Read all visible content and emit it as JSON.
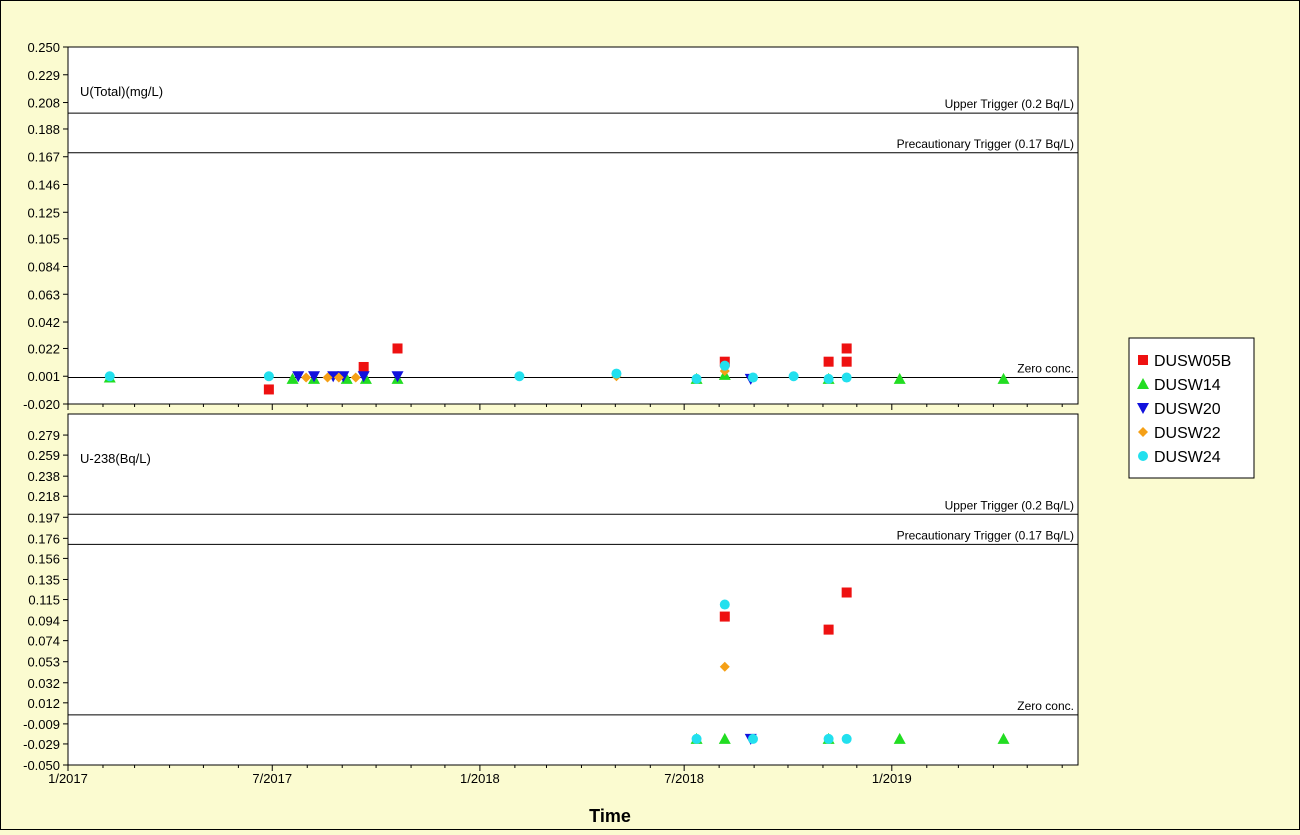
{
  "xlabel": "Time",
  "colors": {
    "background": "#fbfbd0",
    "plot": "#ffffff",
    "DUSW05B": "#ee1111",
    "DUSW14": "#22dd22",
    "DUSW20": "#1111dd",
    "DUSW22": "#f5a016",
    "DUSW24": "#22e0ee"
  },
  "legend": {
    "placement": "right",
    "items": [
      {
        "name": "DUSW05B",
        "marker": "square"
      },
      {
        "name": "DUSW14",
        "marker": "triangle-up"
      },
      {
        "name": "DUSW20",
        "marker": "triangle-down"
      },
      {
        "name": "DUSW22",
        "marker": "diamond"
      },
      {
        "name": "DUSW24",
        "marker": "circle"
      }
    ]
  },
  "chart_data": [
    {
      "type": "scatter",
      "ylabel": "U(Total)(mg/L)",
      "ylim": [
        -0.02,
        0.25
      ],
      "yticks": [
        "0.250",
        "0.229",
        "0.208",
        "0.188",
        "0.167",
        "0.146",
        "0.125",
        "0.105",
        "0.084",
        "0.063",
        "0.042",
        "0.022",
        "0.001",
        "-0.020"
      ],
      "xticks": [
        "1/2017",
        "7/2017",
        "1/2018",
        "7/2018",
        "1/2019"
      ],
      "xlim": [
        "2017-01-01",
        "2019-06-15"
      ],
      "reference_lines": [
        {
          "label": "Upper Trigger (0.2 Bq/L)",
          "y": 0.2
        },
        {
          "label": "Precautionary Trigger (0.17 Bq/L)",
          "y": 0.17
        },
        {
          "label": "Zero conc.",
          "y": 0.0
        }
      ],
      "series": [
        {
          "name": "DUSW05B",
          "x": [
            "2017-06-28",
            "2017-09-20",
            "2017-10-20",
            "2018-08-06",
            "2018-11-06",
            "2018-11-22",
            "2018-11-22"
          ],
          "y": [
            -0.009,
            0.008,
            0.022,
            0.012,
            0.012,
            0.022,
            0.012
          ]
        },
        {
          "name": "DUSW14",
          "x": [
            "2017-02-07",
            "2017-07-19",
            "2017-08-07",
            "2017-09-05",
            "2017-09-22",
            "2017-10-20",
            "2018-07-12",
            "2018-08-06",
            "2018-11-06",
            "2019-01-08",
            "2019-04-10"
          ],
          "y": [
            0.0,
            -0.001,
            -0.001,
            -0.001,
            -0.001,
            -0.001,
            -0.001,
            0.002,
            -0.001,
            -0.001,
            -0.001
          ]
        },
        {
          "name": "DUSW20",
          "x": [
            "2017-07-24",
            "2017-08-07",
            "2017-08-24",
            "2017-09-02",
            "2017-09-20",
            "2017-10-20",
            "2018-08-29"
          ],
          "y": [
            0.001,
            0.001,
            0.001,
            0.001,
            0.001,
            0.001,
            -0.001
          ]
        },
        {
          "name": "DUSW22",
          "x": [
            "2017-07-31",
            "2017-08-19",
            "2017-08-29",
            "2017-09-13",
            "2018-05-02",
            "2018-08-06"
          ],
          "y": [
            0.0,
            0.0,
            0.0,
            0.0,
            0.001,
            0.005
          ]
        },
        {
          "name": "DUSW24",
          "x": [
            "2017-02-07",
            "2017-06-28",
            "2018-02-05",
            "2018-05-02",
            "2018-07-12",
            "2018-08-06",
            "2018-08-31",
            "2018-10-06",
            "2018-11-06",
            "2018-11-22"
          ],
          "y": [
            0.001,
            0.001,
            0.001,
            0.003,
            -0.001,
            0.009,
            0.0,
            0.001,
            -0.001,
            0.0
          ]
        }
      ]
    },
    {
      "type": "scatter",
      "ylabel": "U-238(Bq/L)",
      "ylim": [
        -0.05,
        0.3
      ],
      "yticks": [
        "0.279",
        "0.259",
        "0.238",
        "0.218",
        "0.197",
        "0.176",
        "0.156",
        "0.135",
        "0.115",
        "0.094",
        "0.074",
        "0.053",
        "0.032",
        "0.012",
        "-0.009",
        "-0.029",
        "-0.050"
      ],
      "xticks": [
        "1/2017",
        "7/2017",
        "1/2018",
        "7/2018",
        "1/2019"
      ],
      "xlim": [
        "2017-01-01",
        "2019-06-15"
      ],
      "reference_lines": [
        {
          "label": "Upper Trigger (0.2 Bq/L)",
          "y": 0.2
        },
        {
          "label": "Precautionary Trigger (0.17 Bq/L)",
          "y": 0.17
        },
        {
          "label": "Zero conc.",
          "y": 0.0
        }
      ],
      "series": [
        {
          "name": "DUSW05B",
          "x": [
            "2018-08-06",
            "2018-11-06",
            "2018-11-22"
          ],
          "y": [
            0.098,
            0.085,
            0.122
          ]
        },
        {
          "name": "DUSW14",
          "x": [
            "2018-07-12",
            "2018-08-06",
            "2018-11-06",
            "2019-01-08",
            "2019-04-10"
          ],
          "y": [
            -0.024,
            -0.024,
            -0.024,
            -0.024,
            -0.024
          ]
        },
        {
          "name": "DUSW20",
          "x": [
            "2018-08-29"
          ],
          "y": [
            -0.024
          ]
        },
        {
          "name": "DUSW22",
          "x": [
            "2018-08-06"
          ],
          "y": [
            0.048
          ]
        },
        {
          "name": "DUSW24",
          "x": [
            "2018-07-12",
            "2018-08-06",
            "2018-08-31",
            "2018-11-06",
            "2018-11-22"
          ],
          "y": [
            -0.024,
            0.11,
            -0.024,
            -0.024,
            -0.024
          ]
        }
      ]
    }
  ]
}
